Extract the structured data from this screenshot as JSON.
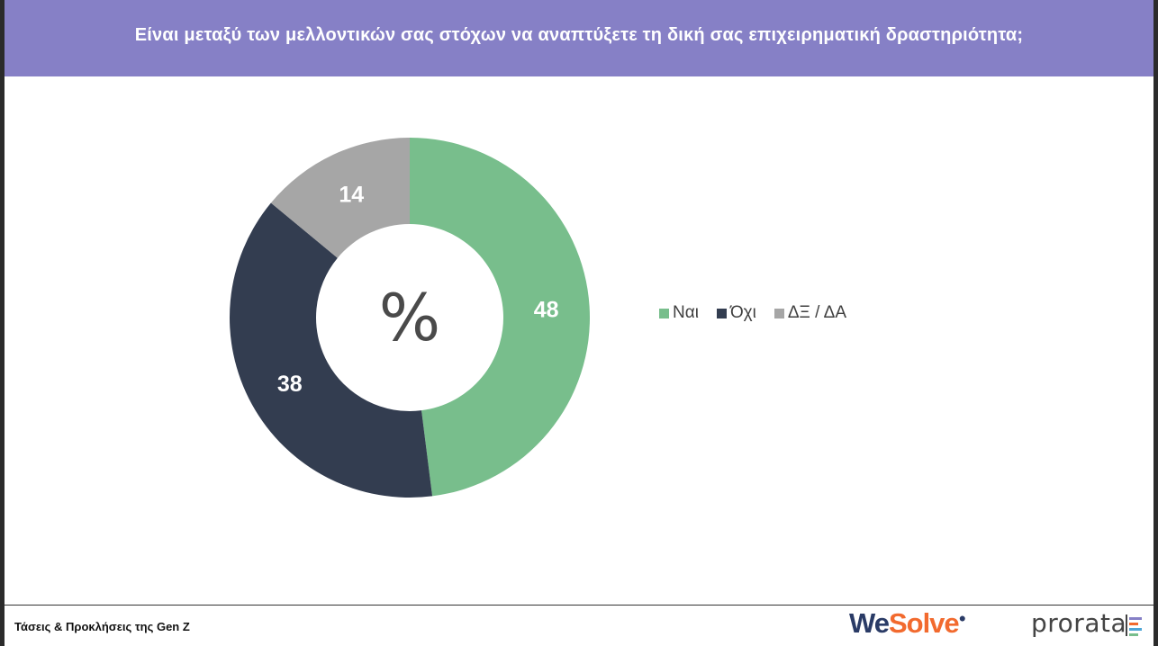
{
  "title": "Είναι μεταξύ των μελλοντικών σας στόχων να αναπτύξετε τη δική σας επιχειρηματική δραστηριότητα;",
  "colors": {
    "header": "#8680c6",
    "nai": "#78be8c",
    "ochi": "#333d50",
    "dxda": "#a6a6a6"
  },
  "chart_data": {
    "type": "pie",
    "variant": "donut",
    "center_label": "%",
    "start": "top, clockwise",
    "slices": [
      {
        "label": "Ναι",
        "value": 48,
        "color": "#78be8c"
      },
      {
        "label": "Όχι",
        "value": 38,
        "color": "#333d50"
      },
      {
        "label": "ΔΞ / ΔΑ",
        "value": 14,
        "color": "#a6a6a6"
      }
    ],
    "legend_position": "right"
  },
  "footer": {
    "text": "Τάσεις & Προκλήσεις της Gen Z",
    "logo_wesolve_a": "We",
    "logo_wesolve_b": "Solve",
    "logo_prorata": "prorata"
  }
}
